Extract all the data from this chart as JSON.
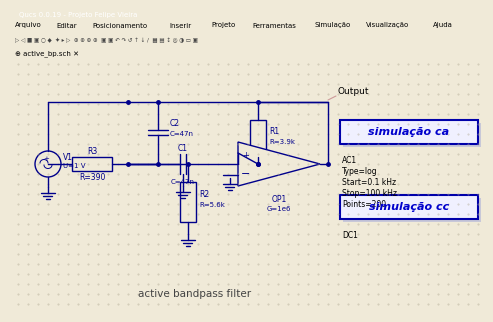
{
  "bg_color": "#f0ead8",
  "title_bar_color": "#5a7aaa",
  "menu_bar_color": "#d8d4c8",
  "toolbar_color": "#d0ccbc",
  "tab_bar_color": "#c8c4b0",
  "title": "Qucs 0.0.19 - Projeto Felipe Vieira",
  "menu_items": [
    "Arquivo",
    "Editar",
    "Posicionamento",
    "Inserir",
    "Projeto",
    "Ferramentas",
    "Simulação",
    "Visualização",
    "Ajuda"
  ],
  "tab_label": "active_bp.sch",
  "cc": "#00008b",
  "sim_box_edge": "#0000aa",
  "sim_box_fill": "#f0f0ff",
  "sim_text_color": "#0000cc",
  "sim_box1_text": "simulação ca",
  "sim_box2_text": "simulação cc",
  "ac1_lines": [
    "AC1",
    "Type=log",
    "Start=0.1 kHz",
    "Stop=100 kHz",
    "Points=200"
  ],
  "dc1_text": "DC1",
  "output_label": "Output",
  "circuit_label": "active bandpass filter",
  "output_line_color": "#cc9999"
}
